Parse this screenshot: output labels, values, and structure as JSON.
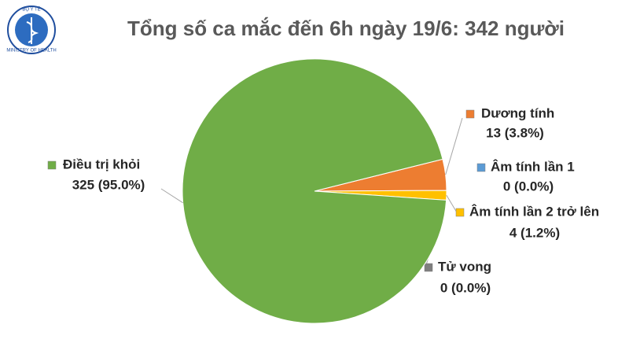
{
  "logo": {
    "top": "BỘ Y TẾ",
    "bottom": "MINISTRY OF HEALTH"
  },
  "chart_data": {
    "type": "pie",
    "title": "Tổng số ca mắc đến 6h ngày 19/6: 342 người",
    "categories": [
      "Dương tính",
      "Âm tính lần 1",
      "Âm tính lần 2 trở lên",
      "Tử vong",
      "Điều trị khỏi"
    ],
    "values": [
      13,
      0,
      4,
      0,
      325
    ],
    "value_labels": [
      "13 (3.8%)",
      "0 (0.0%)",
      "4 (1.2%)",
      "0 (0.0%)",
      "325 (95.0%)"
    ],
    "colors": [
      "#ed7d31",
      "#5b9bd5",
      "#ffc000",
      "#7f7f7f",
      "#70ad47"
    ]
  }
}
